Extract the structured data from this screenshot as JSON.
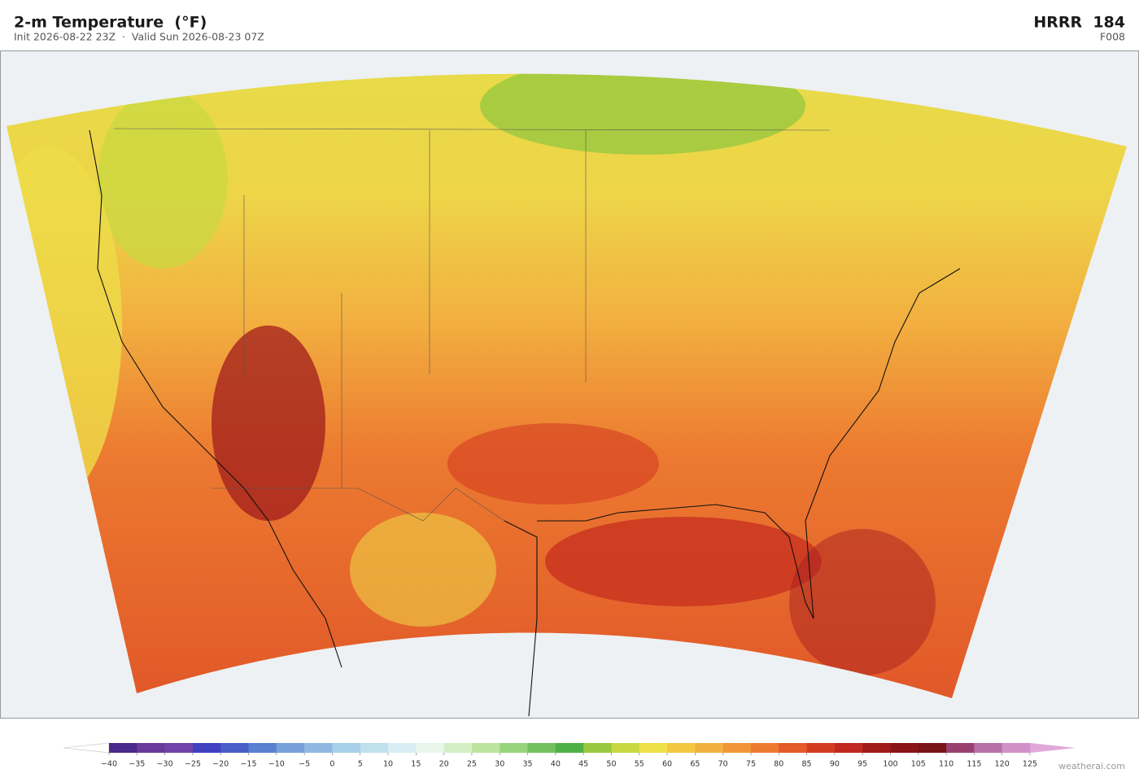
{
  "header": {
    "title": "2-m Temperature  (°F)",
    "subtitle": "Init 2026-08-22 23Z  ·  Valid Sun 2026-08-23 07Z",
    "model": "HRRR  184",
    "forecast_hour": "F008"
  },
  "colorbar": {
    "ticks": [
      {
        "value": -40,
        "label": "−40"
      },
      {
        "value": -35,
        "label": "−35"
      },
      {
        "value": -30,
        "label": "−30"
      },
      {
        "value": -25,
        "label": "−25"
      },
      {
        "value": -20,
        "label": "−20"
      },
      {
        "value": -15,
        "label": "−15"
      },
      {
        "value": -10,
        "label": "−10"
      },
      {
        "value": -5,
        "label": "−5"
      },
      0,
      5,
      10,
      15,
      20,
      25,
      30,
      35,
      40,
      45,
      50,
      55,
      60,
      65,
      70,
      75,
      80,
      85,
      90,
      95,
      100,
      105,
      110,
      115,
      120,
      125
    ],
    "colors": [
      "#4a2a8a",
      "#6a3a9a",
      "#7044a8",
      "#4040c0",
      "#4a5ec8",
      "#5a80d0",
      "#78a0d8",
      "#90b8e0",
      "#a8d0e8",
      "#c0e0ee",
      "#d8eef2",
      "#e8f6ec",
      "#d4eec4",
      "#bce4a0",
      "#98d47c",
      "#74c060",
      "#50b048",
      "#98c840",
      "#c8d840",
      "#eee048",
      "#f4c840",
      "#f2b040",
      "#f09638",
      "#ec7a30",
      "#e45a28",
      "#d43c22",
      "#c02820",
      "#a01c1c",
      "#8a1418",
      "#781418",
      "#9a4070",
      "#b870a8",
      "#d090c8"
    ],
    "under_color": "#ffffff",
    "over_color": "#e0a8d8"
  },
  "footer": {
    "credit": "weatherai.com"
  }
}
